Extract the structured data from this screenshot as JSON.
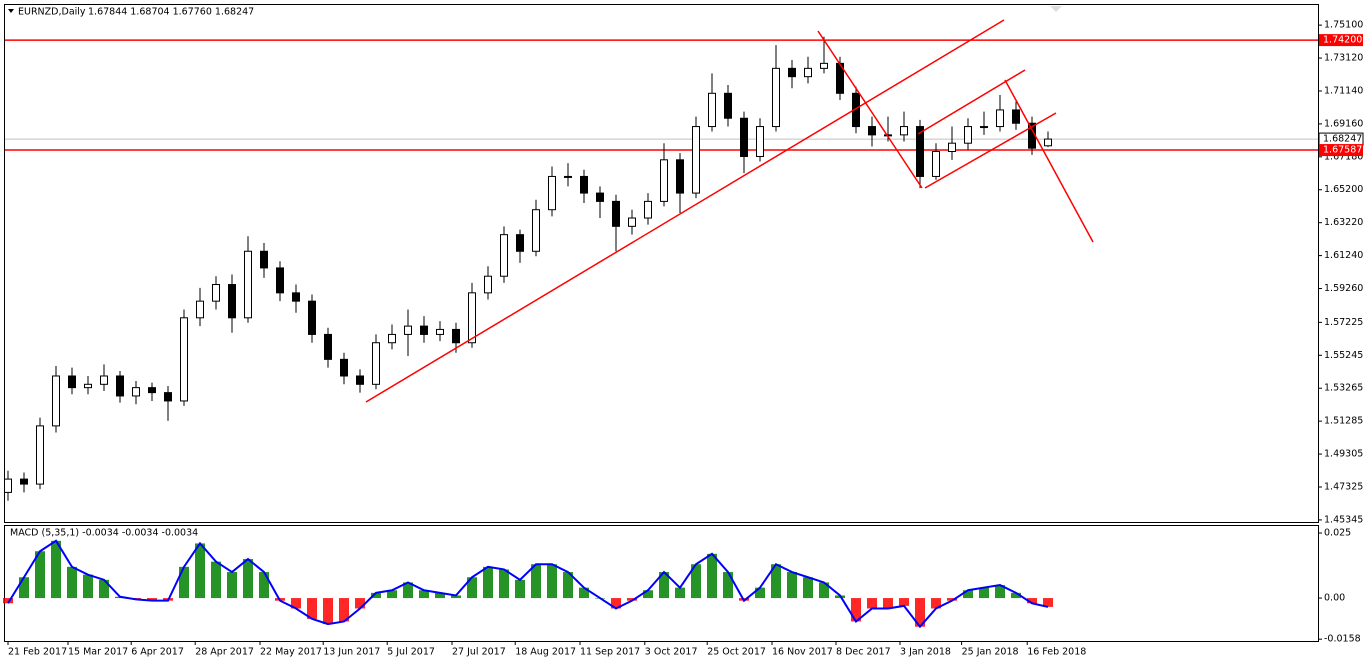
{
  "chart_data": [
    {
      "type": "candlestick",
      "title": "EURNZD,Daily",
      "header_values": "1.67844 1.68704 1.67760 1.68247",
      "open": [
        1.47,
        1.478,
        1.475,
        1.51,
        1.54,
        1.533,
        1.535,
        1.54,
        1.528,
        1.533,
        1.53,
        1.525,
        1.575,
        1.585,
        1.595,
        1.575,
        1.615,
        1.605,
        1.59,
        1.585,
        1.565,
        1.55,
        1.54,
        1.535,
        1.56,
        1.565,
        1.57,
        1.565,
        1.568,
        1.56,
        1.59,
        1.6,
        1.625,
        1.615,
        1.64,
        1.66,
        1.66,
        1.65,
        1.645,
        1.63,
        1.635,
        1.645,
        1.67,
        1.65,
        1.69,
        1.71,
        1.695,
        1.672,
        1.69,
        1.725,
        1.72,
        1.725,
        1.728,
        1.71,
        1.69,
        1.685,
        1.685,
        1.69,
        1.66,
        1.675,
        1.68,
        1.69,
        1.69,
        1.7,
        1.692,
        1.67844
      ],
      "high": [
        1.483,
        1.482,
        1.515,
        1.546,
        1.545,
        1.54,
        1.547,
        1.543,
        1.537,
        1.536,
        1.534,
        1.58,
        1.593,
        1.6,
        1.601,
        1.624,
        1.62,
        1.609,
        1.595,
        1.589,
        1.569,
        1.554,
        1.544,
        1.565,
        1.571,
        1.58,
        1.576,
        1.573,
        1.572,
        1.596,
        1.606,
        1.63,
        1.628,
        1.646,
        1.666,
        1.668,
        1.664,
        1.654,
        1.649,
        1.64,
        1.65,
        1.68,
        1.674,
        1.696,
        1.722,
        1.715,
        1.699,
        1.695,
        1.739,
        1.73,
        1.732,
        1.744,
        1.732,
        1.714,
        1.696,
        1.696,
        1.699,
        1.694,
        1.68,
        1.69,
        1.695,
        1.699,
        1.709,
        1.705,
        1.696,
        1.68704
      ],
      "low": [
        1.465,
        1.47,
        1.472,
        1.506,
        1.529,
        1.529,
        1.531,
        1.524,
        1.523,
        1.525,
        1.513,
        1.522,
        1.57,
        1.58,
        1.566,
        1.572,
        1.599,
        1.585,
        1.578,
        1.56,
        1.545,
        1.535,
        1.53,
        1.532,
        1.556,
        1.552,
        1.56,
        1.561,
        1.554,
        1.557,
        1.586,
        1.596,
        1.608,
        1.612,
        1.636,
        1.654,
        1.644,
        1.635,
        1.615,
        1.625,
        1.631,
        1.642,
        1.638,
        1.647,
        1.687,
        1.69,
        1.662,
        1.669,
        1.687,
        1.713,
        1.716,
        1.722,
        1.706,
        1.686,
        1.678,
        1.681,
        1.681,
        1.653,
        1.658,
        1.67,
        1.676,
        1.685,
        1.687,
        1.688,
        1.673,
        1.6776
      ],
      "close": [
        1.478,
        1.475,
        1.51,
        1.54,
        1.533,
        1.535,
        1.54,
        1.528,
        1.533,
        1.53,
        1.525,
        1.575,
        1.585,
        1.595,
        1.575,
        1.615,
        1.605,
        1.59,
        1.585,
        1.565,
        1.55,
        1.54,
        1.535,
        1.56,
        1.565,
        1.57,
        1.565,
        1.568,
        1.56,
        1.59,
        1.6,
        1.625,
        1.615,
        1.64,
        1.66,
        1.66,
        1.65,
        1.645,
        1.63,
        1.635,
        1.645,
        1.67,
        1.65,
        1.69,
        1.71,
        1.695,
        1.672,
        1.69,
        1.725,
        1.72,
        1.725,
        1.728,
        1.71,
        1.69,
        1.685,
        1.685,
        1.69,
        1.66,
        1.675,
        1.68,
        1.69,
        1.69,
        1.7,
        1.692,
        1.677,
        1.68247
      ],
      "ylim": [
        1.4522,
        1.7631
      ],
      "yticks": [
        {
          "value": 1.751,
          "label": "1.75100"
        },
        {
          "value": 1.7312,
          "label": "1.73120"
        },
        {
          "value": 1.7114,
          "label": "1.71140"
        },
        {
          "value": 1.6916,
          "label": "1.69160"
        },
        {
          "value": 1.6718,
          "label": "1.67180"
        },
        {
          "value": 1.652,
          "label": "1.65200"
        },
        {
          "value": 1.6322,
          "label": "1.63220"
        },
        {
          "value": 1.6124,
          "label": "1.61240"
        },
        {
          "value": 1.5926,
          "label": "1.59260"
        },
        {
          "value": 1.57225,
          "label": "1.57225"
        },
        {
          "value": 1.55245,
          "label": "1.55245"
        },
        {
          "value": 1.53265,
          "label": "1.53265"
        },
        {
          "value": 1.51285,
          "label": "1.51285"
        },
        {
          "value": 1.49305,
          "label": "1.49305"
        },
        {
          "value": 1.47325,
          "label": "1.47325"
        },
        {
          "value": 1.45345,
          "label": "1.45345"
        }
      ],
      "xticks": [
        {
          "value": 0,
          "label": "21 Feb 2017"
        },
        {
          "value": 3.75,
          "label": "15 Mar 2017"
        },
        {
          "value": 7.7,
          "label": "6 Apr 2017"
        },
        {
          "value": 11.7,
          "label": "28 Apr 2017"
        },
        {
          "value": 15.75,
          "label": "22 May 2017"
        },
        {
          "value": 19.7,
          "label": "13 Jun 2017"
        },
        {
          "value": 23.7,
          "label": "5 Jul 2017"
        },
        {
          "value": 27.75,
          "label": "27 Jul 2017"
        },
        {
          "value": 31.7,
          "label": "18 Aug 2017"
        },
        {
          "value": 35.75,
          "label": "11 Sep 2017"
        },
        {
          "value": 39.8,
          "label": "3 Oct 2017"
        },
        {
          "value": 43.7,
          "label": "25 Oct 2017"
        },
        {
          "value": 47.75,
          "label": "16 Nov 2017"
        },
        {
          "value": 51.75,
          "label": "8 Dec 2017"
        },
        {
          "value": 55.75,
          "label": "3 Jan 2018"
        },
        {
          "value": 59.6,
          "label": "25 Jan 2018"
        },
        {
          "value": 63.7,
          "label": "16 Feb 2018"
        }
      ],
      "hlines": [
        {
          "value": 1.742,
          "label": "1.74200"
        },
        {
          "value": 1.67587,
          "label": "1.67587"
        }
      ],
      "hline_color": "#ff0000",
      "last_price": {
        "value": 1.68247,
        "label": "1.68247"
      },
      "color": "#000000"
    },
    {
      "type": "macd",
      "title": "MACD (5,35,1) -0.0034 -0.0034 -0.0034",
      "values": [
        -0.002,
        0.008,
        0.018,
        0.022,
        0.012,
        0.009,
        0.007,
        0.0005,
        -0.0005,
        -0.001,
        -0.001,
        0.012,
        0.021,
        0.014,
        0.01,
        0.015,
        0.01,
        -0.001,
        -0.004,
        -0.008,
        -0.01,
        -0.009,
        -0.004,
        0.002,
        0.003,
        0.006,
        0.003,
        0.002,
        0.001,
        0.008,
        0.012,
        0.011,
        0.007,
        0.013,
        0.013,
        0.01,
        0.004,
        0.0,
        -0.004,
        -0.001,
        0.003,
        0.01,
        0.004,
        0.013,
        0.017,
        0.01,
        -0.001,
        0.004,
        0.013,
        0.01,
        0.008,
        0.006,
        0.001,
        -0.009,
        -0.004,
        -0.004,
        -0.003,
        -0.011,
        -0.004,
        -0.001,
        0.003,
        0.004,
        0.005,
        0.002,
        -0.002,
        -0.0034
      ],
      "ylim": [
        -0.0165,
        0.0277
      ],
      "yticks": [
        0.025,
        {
          "value": 0,
          "label": "0.00"
        },
        -0.0158
      ],
      "up_color": "#008000",
      "down_color": "#ff0000",
      "line_color": "#0000ff"
    }
  ]
}
